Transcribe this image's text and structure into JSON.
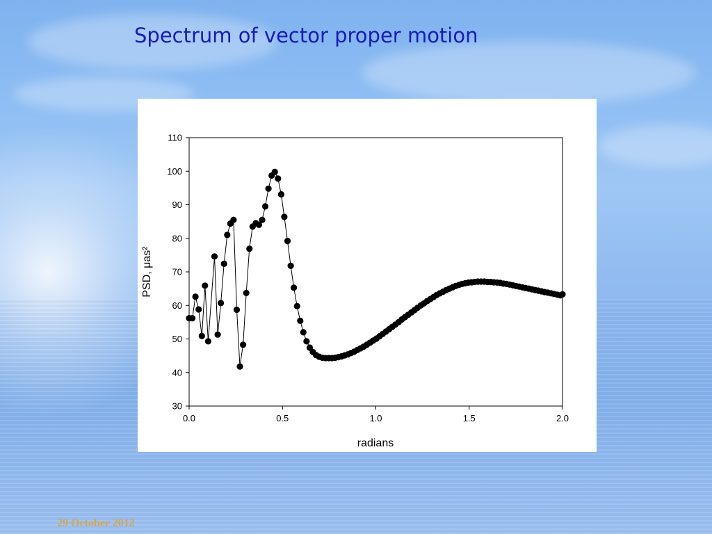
{
  "slide": {
    "title": "Spectrum of vector proper motion",
    "footer_date": "29 October 2012"
  },
  "chart_data": {
    "type": "line",
    "xlabel": "radians",
    "ylabel": "PSD, μas²",
    "xlim": [
      0.0,
      2.0
    ],
    "ylim": [
      30,
      110
    ],
    "xticks": [
      "0.0",
      "0.5",
      "1.0",
      "1.5",
      "2.0"
    ],
    "yticks": [
      "30",
      "40",
      "50",
      "60",
      "70",
      "80",
      "90",
      "100",
      "110"
    ],
    "grid": false,
    "marker": "filled-circle",
    "series": [
      {
        "points": [
          [
            0.0,
            56.2
          ],
          [
            0.017,
            56.2
          ],
          [
            0.034,
            62.6
          ],
          [
            0.051,
            58.8
          ],
          [
            0.068,
            50.9
          ],
          [
            0.085,
            65.9
          ],
          [
            0.102,
            49.3
          ],
          [
            0.136,
            74.6
          ],
          [
            0.153,
            51.3
          ],
          [
            0.17,
            60.7
          ],
          [
            0.187,
            72.4
          ],
          [
            0.204,
            81.0
          ],
          [
            0.221,
            84.4
          ],
          [
            0.238,
            85.5
          ],
          [
            0.255,
            58.7
          ],
          [
            0.272,
            41.8
          ],
          [
            0.289,
            48.3
          ],
          [
            0.306,
            63.7
          ],
          [
            0.323,
            76.9
          ],
          [
            0.34,
            83.5
          ],
          [
            0.357,
            84.5
          ],
          [
            0.374,
            84.0
          ],
          [
            0.391,
            85.5
          ],
          [
            0.408,
            89.5
          ],
          [
            0.425,
            94.8
          ],
          [
            0.442,
            98.7
          ],
          [
            0.459,
            99.8
          ],
          [
            0.476,
            97.8
          ],
          [
            0.493,
            93.1
          ],
          [
            0.51,
            86.4
          ],
          [
            0.527,
            79.2
          ],
          [
            0.544,
            71.8
          ],
          [
            0.561,
            65.3
          ],
          [
            0.578,
            59.8
          ],
          [
            0.595,
            55.4
          ],
          [
            0.612,
            52.0
          ],
          [
            0.629,
            49.3
          ],
          [
            0.646,
            47.4
          ],
          [
            0.663,
            46.1
          ],
          [
            0.68,
            45.2
          ],
          [
            0.697,
            44.7
          ],
          [
            0.714,
            44.4
          ],
          [
            0.731,
            44.3
          ],
          [
            0.748,
            44.3
          ],
          [
            0.765,
            44.3
          ],
          [
            0.782,
            44.4
          ],
          [
            0.799,
            44.6
          ],
          [
            0.816,
            44.8
          ],
          [
            0.833,
            45.1
          ],
          [
            0.85,
            45.4
          ],
          [
            0.867,
            45.8
          ],
          [
            0.884,
            46.2
          ],
          [
            0.901,
            46.7
          ],
          [
            0.918,
            47.2
          ],
          [
            0.935,
            47.7
          ],
          [
            0.952,
            48.3
          ],
          [
            0.969,
            48.9
          ],
          [
            0.986,
            49.5
          ],
          [
            1.003,
            50.1
          ],
          [
            1.02,
            50.8
          ],
          [
            1.037,
            51.5
          ],
          [
            1.054,
            52.2
          ],
          [
            1.071,
            52.9
          ],
          [
            1.088,
            53.6
          ],
          [
            1.105,
            54.3
          ],
          [
            1.122,
            55.0
          ],
          [
            1.139,
            55.8
          ],
          [
            1.156,
            56.5
          ],
          [
            1.173,
            57.2
          ],
          [
            1.19,
            57.9
          ],
          [
            1.207,
            58.6
          ],
          [
            1.224,
            59.3
          ],
          [
            1.241,
            60.0
          ],
          [
            1.258,
            60.6
          ],
          [
            1.275,
            61.3
          ],
          [
            1.292,
            61.9
          ],
          [
            1.309,
            62.5
          ],
          [
            1.326,
            63.1
          ],
          [
            1.343,
            63.6
          ],
          [
            1.36,
            64.1
          ],
          [
            1.377,
            64.6
          ],
          [
            1.394,
            65.0
          ],
          [
            1.411,
            65.4
          ],
          [
            1.428,
            65.8
          ],
          [
            1.445,
            66.1
          ],
          [
            1.462,
            66.4
          ],
          [
            1.479,
            66.6
          ],
          [
            1.496,
            66.8
          ],
          [
            1.513,
            66.9
          ],
          [
            1.53,
            67.0
          ],
          [
            1.547,
            67.1
          ],
          [
            1.564,
            67.1
          ],
          [
            1.581,
            67.1
          ],
          [
            1.598,
            67.0
          ],
          [
            1.615,
            67.0
          ],
          [
            1.632,
            66.9
          ],
          [
            1.649,
            66.8
          ],
          [
            1.666,
            66.7
          ],
          [
            1.683,
            66.5
          ],
          [
            1.7,
            66.4
          ],
          [
            1.717,
            66.2
          ],
          [
            1.734,
            66.0
          ],
          [
            1.751,
            65.8
          ],
          [
            1.768,
            65.6
          ],
          [
            1.785,
            65.4
          ],
          [
            1.802,
            65.2
          ],
          [
            1.819,
            65.0
          ],
          [
            1.836,
            64.8
          ],
          [
            1.853,
            64.6
          ],
          [
            1.87,
            64.4
          ],
          [
            1.887,
            64.2
          ],
          [
            1.904,
            64.0
          ],
          [
            1.921,
            63.8
          ],
          [
            1.938,
            63.6
          ],
          [
            1.955,
            63.4
          ],
          [
            1.972,
            63.2
          ],
          [
            1.989,
            63.0
          ],
          [
            2.0,
            63.3
          ]
        ]
      }
    ]
  }
}
